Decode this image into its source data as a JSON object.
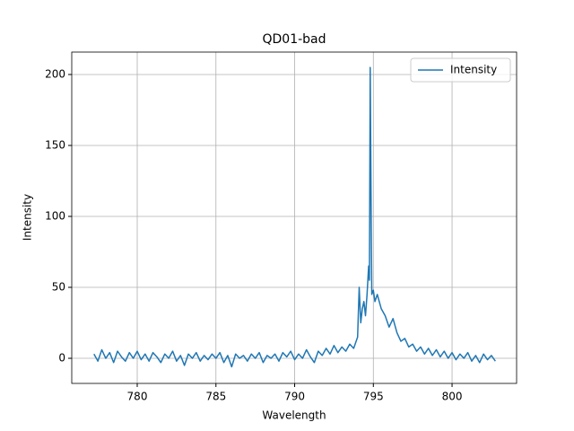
{
  "chart_data": {
    "type": "line",
    "title": "QD01-bad",
    "x_label": "Wavelength",
    "y_label": "Intensity",
    "x": [
      777.25,
      777.5,
      777.75,
      778,
      778.25,
      778.5,
      778.75,
      779,
      779.25,
      779.5,
      779.75,
      780,
      780.25,
      780.5,
      780.75,
      781,
      781.25,
      781.5,
      781.75,
      782,
      782.25,
      782.5,
      782.75,
      783,
      783.25,
      783.5,
      783.75,
      784,
      784.25,
      784.5,
      784.75,
      785,
      785.25,
      785.5,
      785.75,
      786,
      786.25,
      786.5,
      786.75,
      787,
      787.25,
      787.5,
      787.75,
      788,
      788.25,
      788.5,
      788.75,
      789,
      789.25,
      789.5,
      789.75,
      790,
      790.25,
      790.5,
      790.75,
      791,
      791.25,
      791.5,
      791.75,
      792,
      792.25,
      792.5,
      792.75,
      793,
      793.25,
      793.5,
      793.75,
      794,
      794.1,
      794.2,
      794.3,
      794.4,
      794.5,
      794.6,
      794.7,
      794.75,
      794.8,
      794.85,
      794.9,
      795,
      795.1,
      795.25,
      795.5,
      795.75,
      796,
      796.25,
      796.5,
      796.75,
      797,
      797.25,
      797.5,
      797.75,
      798,
      798.25,
      798.5,
      798.75,
      799,
      799.25,
      799.5,
      799.75,
      800,
      800.25,
      800.5,
      800.75,
      801,
      801.25,
      801.5,
      801.75,
      802,
      802.25,
      802.5,
      802.75
    ],
    "series": [
      {
        "name": "Intensity",
        "color": "#1f77b4",
        "values": [
          3,
          -2,
          6,
          0,
          4,
          -3,
          5,
          1,
          -2,
          4,
          0,
          5,
          -1,
          3,
          -2,
          4,
          1,
          -3,
          3,
          0,
          5,
          -2,
          2,
          -5,
          3,
          0,
          4,
          -2,
          2,
          -1,
          3,
          0,
          4,
          -3,
          2,
          -6,
          3,
          0,
          2,
          -2,
          3,
          0,
          4,
          -3,
          2,
          0,
          3,
          -2,
          4,
          1,
          5,
          -1,
          3,
          0,
          6,
          1,
          -3,
          5,
          2,
          7,
          3,
          9,
          4,
          8,
          5,
          10,
          7,
          15,
          50,
          25,
          35,
          40,
          30,
          45,
          65,
          55,
          205,
          120,
          45,
          48,
          40,
          45,
          35,
          30,
          22,
          28,
          18,
          12,
          14,
          8,
          10,
          5,
          8,
          3,
          7,
          2,
          6,
          1,
          5,
          0,
          4,
          -1,
          3,
          0,
          4,
          -2,
          2,
          -3,
          3,
          -1,
          2,
          -2
        ]
      }
    ],
    "xlim": [
      775.84,
      804.1
    ],
    "ylim": [
      -17.7,
      215.8
    ],
    "xticks": [
      780,
      785,
      790,
      795,
      800
    ],
    "yticks": [
      0,
      50,
      100,
      150,
      200
    ],
    "grid": true,
    "legend": "upper-right"
  }
}
